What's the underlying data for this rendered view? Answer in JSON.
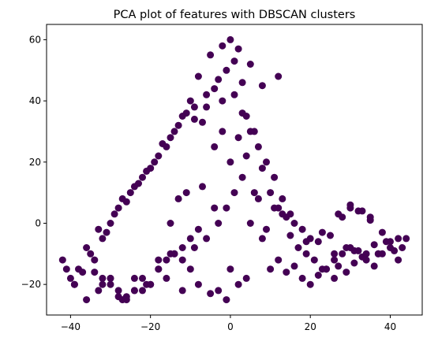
{
  "chart_data": {
    "type": "scatter",
    "title": "PCA plot of features with DBSCAN clusters",
    "xlabel": "",
    "ylabel": "",
    "xlim": [
      -46,
      48
    ],
    "ylim": [
      -30,
      65
    ],
    "xticks": [
      -40,
      -20,
      0,
      20,
      40
    ],
    "yticks": [
      -20,
      0,
      20,
      40,
      60
    ],
    "xtick_labels": [
      "−40",
      "−20",
      "0",
      "20",
      "40"
    ],
    "ytick_labels": [
      "−20",
      "0",
      "20",
      "40",
      "60"
    ],
    "grid": false,
    "legend": "none",
    "colors": {
      "point": "#440154",
      "axes": "#000000",
      "background": "#ffffff"
    },
    "series": [
      {
        "color": "#440154",
        "x": [
          0,
          -5,
          5,
          -2,
          2,
          -8,
          8,
          -1,
          1,
          -3,
          3,
          -10,
          -12,
          -15,
          -18,
          -20,
          -22,
          -25,
          -28,
          -30,
          -32,
          -35,
          -38,
          -40,
          -42,
          -14,
          -6,
          -9,
          -16,
          -19,
          -24,
          -27,
          -33,
          -36,
          10,
          12,
          14,
          16,
          18,
          20,
          22,
          25,
          28,
          30,
          32,
          35,
          38,
          40,
          42,
          44,
          26,
          34,
          24,
          36,
          6,
          4,
          -4,
          7,
          -7,
          9,
          11,
          13,
          15,
          -11,
          -13,
          -17,
          -21,
          -23,
          -26,
          -29,
          -31,
          -34,
          -37,
          -39,
          12,
          -2,
          1,
          -6,
          3,
          -9,
          5,
          17,
          19,
          21,
          23,
          27,
          29,
          31,
          33,
          37,
          39,
          41,
          27,
          30,
          33,
          35,
          26,
          0,
          2,
          -3,
          -1,
          4,
          -5,
          -8,
          -10,
          -12,
          -4,
          -14,
          -16,
          6,
          8,
          -18,
          -20,
          -22,
          -24,
          -26,
          -28,
          -30,
          -32,
          10,
          12,
          14,
          16,
          18,
          20,
          22,
          24,
          26,
          28,
          30,
          32,
          34,
          36,
          38,
          40,
          42,
          -3,
          -6,
          -9,
          -12,
          -15,
          -18,
          -21,
          -24,
          -27,
          -30,
          -33,
          -36,
          -39,
          -41,
          0,
          4,
          8,
          -2,
          2,
          -4,
          3,
          1,
          -1,
          -7,
          7,
          -11,
          11,
          -13,
          13,
          -15,
          -8,
          -10,
          -12,
          -14,
          -16,
          -18,
          -20,
          -22,
          -24,
          -26,
          -28,
          -30,
          -32,
          -34,
          5,
          9,
          15,
          19,
          23,
          29,
          31,
          37,
          43
        ],
        "y": [
          60,
          55,
          52,
          58,
          57,
          48,
          45,
          50,
          53,
          47,
          46,
          40,
          35,
          28,
          22,
          18,
          15,
          10,
          5,
          0,
          -5,
          -10,
          -15,
          -18,
          -12,
          30,
          42,
          38,
          25,
          20,
          12,
          8,
          -2,
          -8,
          10,
          5,
          2,
          0,
          -2,
          -5,
          -6,
          -4,
          2,
          5,
          4,
          2,
          -3,
          -8,
          -12,
          -5,
          -10,
          -12,
          -15,
          -14,
          30,
          35,
          44,
          25,
          33,
          20,
          15,
          8,
          3,
          36,
          32,
          26,
          17,
          13,
          7,
          3,
          -3,
          -12,
          -16,
          -20,
          48,
          40,
          42,
          38,
          36,
          34,
          30,
          -8,
          -10,
          -12,
          -15,
          -14,
          -16,
          -13,
          -11,
          -10,
          -6,
          -9,
          3,
          6,
          4,
          1,
          -18,
          -15,
          -20,
          -22,
          -25,
          -18,
          -23,
          -20,
          -15,
          -22,
          5,
          -10,
          -18,
          10,
          -5,
          -12,
          -20,
          -22,
          -18,
          -25,
          -24,
          -20,
          -18,
          -15,
          -12,
          -16,
          -14,
          -18,
          -20,
          -17,
          -15,
          -12,
          -10,
          -8,
          -9,
          -10,
          -7,
          -10,
          -6,
          -5,
          0,
          -5,
          -8,
          -12,
          -10,
          -15,
          -20,
          -22,
          -25,
          -18,
          -22,
          -25,
          -20,
          -15,
          20,
          22,
          18,
          30,
          28,
          25,
          15,
          10,
          5,
          12,
          8,
          10,
          5,
          8,
          3,
          0,
          -2,
          -5,
          -8,
          -10,
          -12,
          -15,
          -20,
          -18,
          -22,
          -24,
          -22,
          -18,
          -20,
          -16,
          0,
          -2,
          -4,
          -6,
          -3,
          -8,
          -9,
          -10,
          -8
        ]
      }
    ]
  }
}
